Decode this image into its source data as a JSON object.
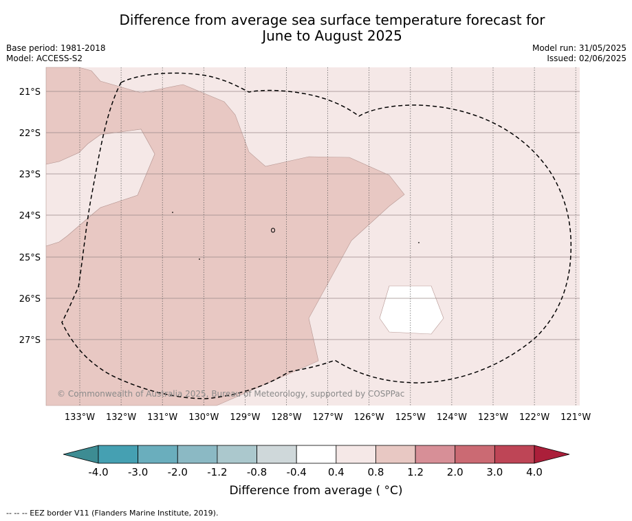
{
  "header": {
    "title_line1": "Difference from average sea surface temperature forecast for",
    "title_line2": "June to August 2025",
    "base_period": "Base period: 1981-2018",
    "model": "Model: ACCESS-S2",
    "model_run": "Model run: 31/05/2025",
    "issued": "Issued: 02/06/2025"
  },
  "map": {
    "copyright": "© Commonwealth of Australia 2025, Bureau of Meteorology, supported by COSPPac",
    "lat_labels": [
      "21°S",
      "22°S",
      "23°S",
      "24°S",
      "25°S",
      "26°S",
      "27°S"
    ],
    "lon_labels": [
      "133°W",
      "132°W",
      "131°W",
      "130°W",
      "129°W",
      "128°W",
      "127°W",
      "126°W",
      "125°W",
      "124°W",
      "123°W",
      "122°W",
      "121°W"
    ],
    "region_colors": {
      "anomaly_0_4_to_0_8": "#f5e8e7",
      "anomaly_0_8_to_1_2": "#e8c8c3",
      "anomaly_neg0_4_to_0_4": "#ffffff"
    },
    "eez_border_style": "dashed"
  },
  "colorbar": {
    "title": "Difference from average ( °C)",
    "tick_labels": [
      "-4.0",
      "-3.0",
      "-2.0",
      "-1.2",
      "-0.8",
      "-0.4",
      "0.4",
      "0.8",
      "1.2",
      "2.0",
      "3.0",
      "4.0"
    ],
    "colors": [
      "#45a0b2",
      "#6aaebd",
      "#8bb9c4",
      "#abc8cd",
      "#cfd8da",
      "#ffffff",
      "#f5e8e7",
      "#e8c8c3",
      "#d78f97",
      "#cb6a73",
      "#be4556"
    ],
    "extend_low_color": "#3d8c93",
    "extend_high_color": "#ab1f3a"
  },
  "footnote": "--  --  -- EEZ border V11 (Flanders Marine Institute, 2019)."
}
